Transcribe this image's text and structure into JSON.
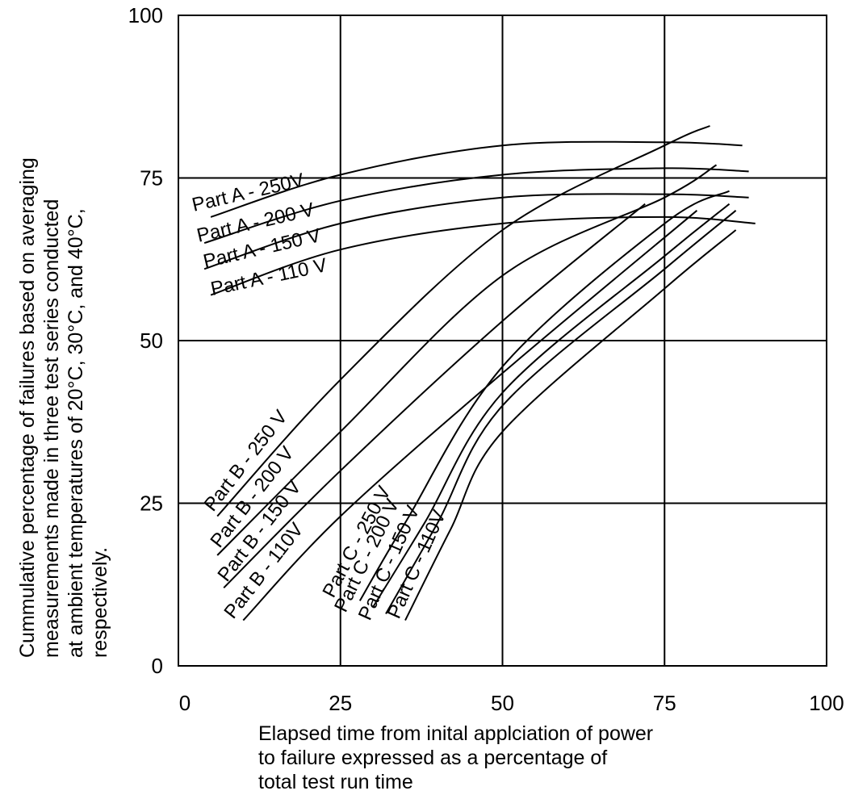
{
  "chart_data": {
    "type": "line",
    "title": "",
    "xlabel": "Elapsed time from inital applciation of power to failure expressed as a percentage of total test run time",
    "xlabel_lines": [
      "Elapsed time from inital applciation of power",
      "to failure expressed as a percentage of",
      "total test run time"
    ],
    "ylabel": "Cummulative percentage of failures based on averaging measurements made in three test series conducted at ambient temperatures of 20°C, 30°C, and 40°C, respectively.",
    "ylabel_lines": [
      "Cummulative percentage of failures based on averaging",
      "measurements made in three test series conducted",
      "at ambient temperatures of 20°C, 30°C, and 40°C,",
      "respectively."
    ],
    "xlim": [
      0,
      100
    ],
    "ylim": [
      0,
      100
    ],
    "x_ticks": [
      "0",
      "25",
      "50",
      "75",
      "100"
    ],
    "y_ticks": [
      "0",
      "25",
      "50",
      "75",
      "100"
    ],
    "grid": true,
    "series": [
      {
        "name": "Part A - 250V",
        "x": [
          5,
          25,
          50,
          75,
          87
        ],
        "y": [
          69,
          75.5,
          80,
          80.5,
          80
        ]
      },
      {
        "name": "Part A - 200 V",
        "x": [
          4,
          25,
          50,
          75,
          88
        ],
        "y": [
          65,
          71.5,
          75.5,
          76.5,
          76
        ]
      },
      {
        "name": "Part A - 150 V",
        "x": [
          4,
          25,
          50,
          75,
          88
        ],
        "y": [
          61,
          68,
          72,
          72.5,
          72
        ]
      },
      {
        "name": "Part A - 110 V",
        "x": [
          5,
          25,
          50,
          75,
          89
        ],
        "y": [
          57,
          64,
          68,
          69,
          68
        ]
      },
      {
        "name": "Part B - 250 V",
        "x": [
          6,
          25,
          50,
          75,
          82
        ],
        "y": [
          23,
          44,
          67,
          80,
          83
        ]
      },
      {
        "name": "Part B - 200 V",
        "x": [
          6,
          25,
          50,
          75,
          83
        ],
        "y": [
          17,
          36,
          60,
          72,
          77
        ]
      },
      {
        "name": "Part B - 150 V",
        "x": [
          7,
          25,
          50,
          72
        ],
        "y": [
          12,
          30,
          53,
          71
        ]
      },
      {
        "name": "Part B - 110V",
        "x": [
          10,
          25,
          50,
          80
        ],
        "y": [
          7,
          23,
          45,
          70
        ]
      },
      {
        "name": "Part C - 250 V",
        "x": [
          28,
          35,
          50,
          75,
          85
        ],
        "y": [
          10,
          22,
          46,
          68,
          73
        ]
      },
      {
        "name": "Part C - 200 V",
        "x": [
          30,
          38,
          50,
          75,
          85
        ],
        "y": [
          9,
          22,
          42,
          63,
          71
        ]
      },
      {
        "name": "Part C - 150 V",
        "x": [
          32,
          40,
          50,
          75,
          86
        ],
        "y": [
          8,
          22,
          40,
          61,
          70
        ]
      },
      {
        "name": "Part C - 110V",
        "x": [
          35,
          42,
          50,
          75,
          86
        ],
        "y": [
          7,
          21,
          36,
          58,
          67
        ]
      }
    ]
  }
}
